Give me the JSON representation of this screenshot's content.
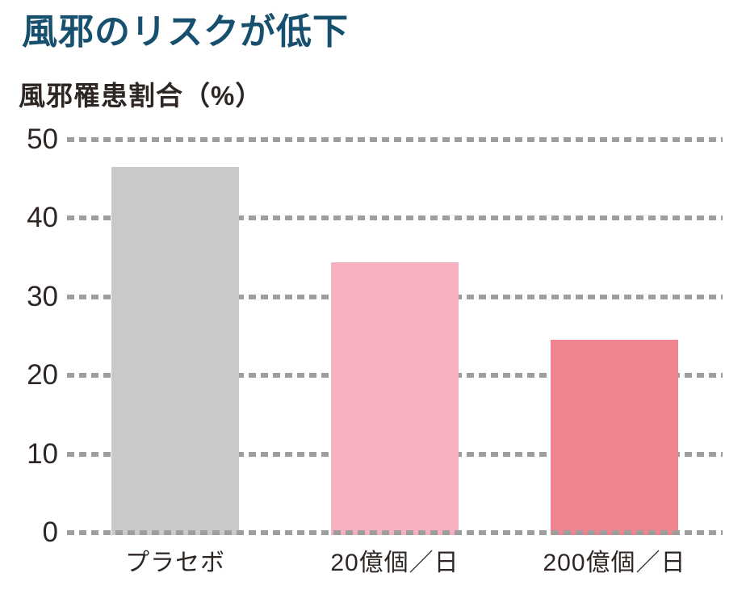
{
  "page": {
    "background": "#ffffff"
  },
  "chart_data": {
    "type": "bar",
    "title": "風邪のリスクが低下",
    "subtitle": "風邪罹患割合（%）",
    "categories": [
      "プラセボ",
      "20億個／日",
      "200億個／日"
    ],
    "values": [
      46.5,
      34.4,
      24.5
    ],
    "bar_colors": [
      "#c9c9c9",
      "#f5b1bf",
      "#ef838e"
    ],
    "ylim": [
      0,
      50
    ],
    "ytick_step": 10,
    "ytick_labels": [
      "0",
      "10",
      "20",
      "30",
      "40",
      "50"
    ],
    "xlabel": "",
    "ylabel": "風邪罹患割合（%）",
    "grid": "horizontal-dashed",
    "legend": "none",
    "colors": {
      "title_text": "#16506e",
      "axis_text": "#2e2623",
      "gridline": "#9e9e9e",
      "background": "#ffffff"
    }
  }
}
